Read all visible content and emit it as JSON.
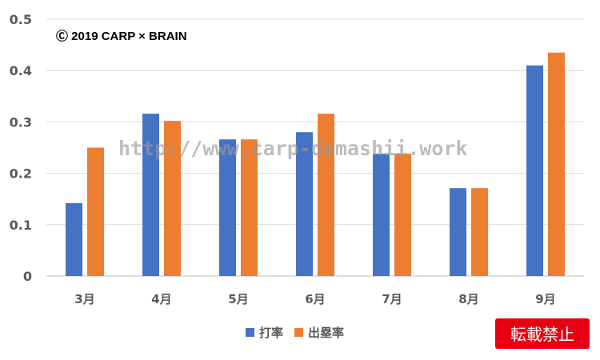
{
  "chart_data": {
    "type": "bar",
    "categories": [
      "3月",
      "4月",
      "5月",
      "6月",
      "7月",
      "8月",
      "9月"
    ],
    "series": [
      {
        "name": "打率",
        "color": "#4472C4",
        "values": [
          0.142,
          0.316,
          0.266,
          0.28,
          0.238,
          0.171,
          0.41
        ]
      },
      {
        "name": "出塁率",
        "color": "#ED7D31",
        "values": [
          0.25,
          0.302,
          0.266,
          0.316,
          0.238,
          0.171,
          0.435
        ]
      }
    ],
    "yticks": [
      "0",
      "0.1",
      "0.2",
      "0.3",
      "0.4",
      "0.5"
    ],
    "ylim": [
      0,
      0.5
    ],
    "grid": true,
    "legend": "bottom-center"
  },
  "annotations": {
    "copyright": "Ⓒ 2019 CARP × BRAIN",
    "watermark": "http://www.carp-damashii.work",
    "badge": "転載禁止",
    "badge_color": "#E60012"
  }
}
